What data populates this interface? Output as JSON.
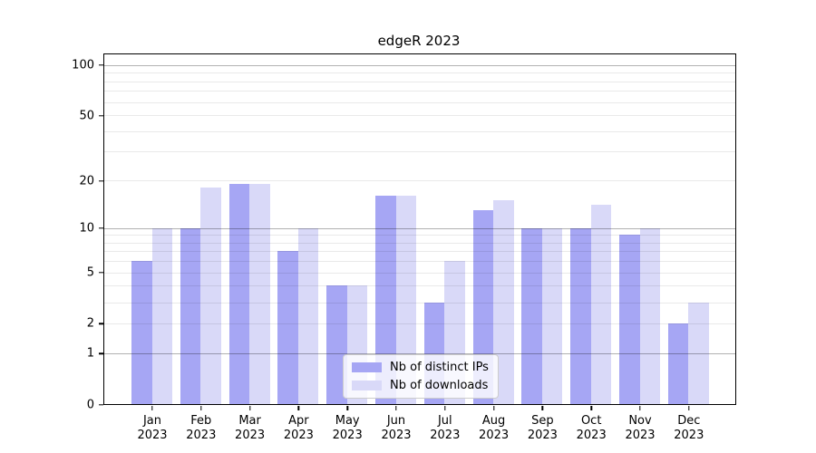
{
  "title": "edgeR 2023",
  "colors": {
    "ips_bar": "#a6a6f4",
    "downloads_bar": "#d9d9f8",
    "grid_major": "rgba(0,0,0,0.30)",
    "grid_minor": "rgba(0,0,0,0.085)",
    "axis": "#000000"
  },
  "legend": {
    "items": [
      {
        "label": "Nb of distinct IPs",
        "color_key": "ips_bar"
      },
      {
        "label": "Nb of downloads",
        "color_key": "downloads_bar"
      }
    ]
  },
  "y_axis": {
    "tick_values": [
      100,
      50,
      20,
      10,
      5,
      2,
      1,
      0
    ],
    "tick_labels": [
      "100",
      "50",
      "20",
      "10",
      "5",
      "2",
      "1",
      "0"
    ],
    "major_grid_values": [
      1,
      10,
      100
    ],
    "minor_grid_values": [
      2,
      3,
      4,
      5,
      6,
      7,
      8,
      9,
      20,
      30,
      40,
      50,
      60,
      70,
      80,
      90
    ]
  },
  "x_axis": {
    "categories": [
      {
        "month": "Jan",
        "year": "2023"
      },
      {
        "month": "Feb",
        "year": "2023"
      },
      {
        "month": "Mar",
        "year": "2023"
      },
      {
        "month": "Apr",
        "year": "2023"
      },
      {
        "month": "May",
        "year": "2023"
      },
      {
        "month": "Jun",
        "year": "2023"
      },
      {
        "month": "Jul",
        "year": "2023"
      },
      {
        "month": "Aug",
        "year": "2023"
      },
      {
        "month": "Sep",
        "year": "2023"
      },
      {
        "month": "Oct",
        "year": "2023"
      },
      {
        "month": "Nov",
        "year": "2023"
      },
      {
        "month": "Dec",
        "year": "2023"
      }
    ]
  },
  "chart_data": {
    "type": "bar",
    "title": "edgeR 2023",
    "xlabel": "",
    "ylabel": "",
    "y_scale": "log10(1+x)",
    "ylim": [
      0,
      115
    ],
    "yticks": [
      0,
      1,
      2,
      5,
      10,
      20,
      50,
      100
    ],
    "grid": true,
    "legend_position": "lower-center-inside",
    "categories": [
      "Jan 2023",
      "Feb 2023",
      "Mar 2023",
      "Apr 2023",
      "May 2023",
      "Jun 2023",
      "Jul 2023",
      "Aug 2023",
      "Sep 2023",
      "Oct 2023",
      "Nov 2023",
      "Dec 2023"
    ],
    "series": [
      {
        "name": "Nb of distinct IPs",
        "values": [
          6,
          10,
          19,
          7,
          4,
          16,
          3,
          13,
          10,
          10,
          9,
          2
        ]
      },
      {
        "name": "Nb of downloads",
        "values": [
          10,
          18,
          19,
          10,
          4,
          16,
          6,
          15,
          10,
          14,
          10,
          3
        ]
      }
    ]
  }
}
